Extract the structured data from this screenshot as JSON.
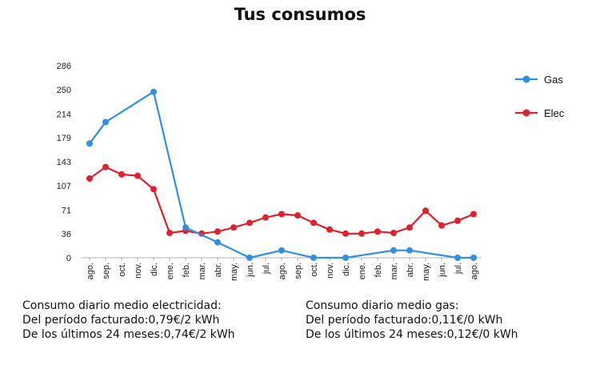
{
  "chart_data": {
    "type": "line",
    "title": "Tus consumos",
    "categories": [
      "ago.",
      "sep.",
      "oct.",
      "nov.",
      "dic.",
      "ene.",
      "feb.",
      "mar.",
      "abr.",
      "may.",
      "jun.",
      "jul.",
      "ago.",
      "sep.",
      "oct.",
      "nov.",
      "dic.",
      "ene.",
      "feb.",
      "mar.",
      "abr.",
      "may.",
      "jun.",
      "jul.",
      "ago."
    ],
    "yticks": [
      0,
      36,
      71,
      107,
      143,
      179,
      214,
      250,
      286
    ],
    "ylim": [
      0,
      286
    ],
    "grid": false,
    "legend_position": "right",
    "series": [
      {
        "name": "Gas",
        "color": "#2f8fe0",
        "values": [
          170,
          202,
          null,
          null,
          247,
          null,
          45,
          null,
          23,
          null,
          0,
          null,
          11,
          null,
          0,
          null,
          0,
          null,
          null,
          11,
          11,
          null,
          null,
          0,
          0
        ]
      },
      {
        "name": "Elec",
        "color": "#e0202a",
        "values": [
          118,
          135,
          124,
          122,
          102,
          37,
          40,
          36,
          39,
          45,
          52,
          60,
          65,
          63,
          52,
          42,
          36,
          36,
          39,
          37,
          45,
          70,
          48,
          55,
          65
        ]
      }
    ]
  },
  "summary": {
    "electricity": {
      "heading": "Consumo diario medio electricidad:",
      "period": "Del período facturado:0,79€/2 kWh",
      "last24": "De los últimos 24 meses:0,74€/2 kWh"
    },
    "gas": {
      "heading": "Consumo diario medio gas:",
      "period": "Del período facturado:0,11€/0 kWh",
      "last24": "De los últimos 24 meses:0,12€/0 kWh"
    }
  }
}
